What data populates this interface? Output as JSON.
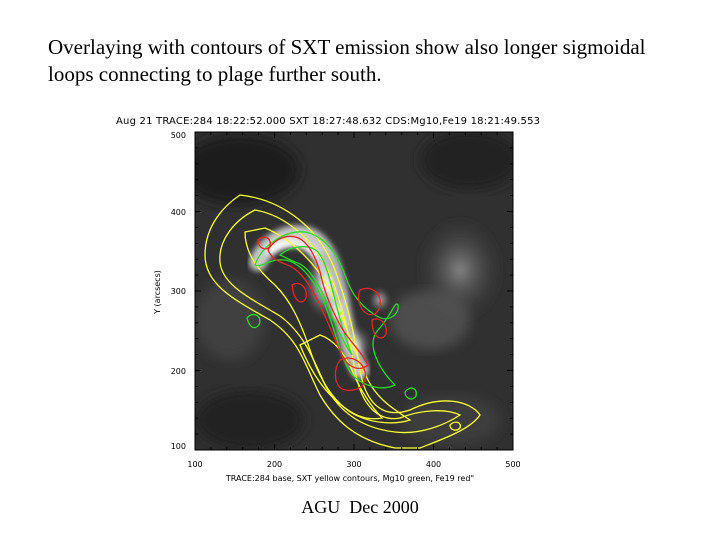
{
  "slide": {
    "title": "Overlaying with contours of SXT emission show also longer sigmoidal loops connecting to plage further south.",
    "footer": "AGU  Dec 2000"
  },
  "figure": {
    "header": "Aug 21 TRACE:284 18:22:52.000 SXT 18:27:48.632 CDS:Mg10,Fe19 18:21:49.553",
    "y_axis_title": "Y (arcsecs)",
    "x_axis_caption": "TRACE:284 base, SXT yellow contours, Mg10 green, Fe19 red\"",
    "x_ticks": [
      "100",
      "200",
      "300",
      "400",
      "500"
    ],
    "y_ticks": [
      "500",
      "400",
      "300",
      "200",
      "100"
    ],
    "contour_colors": {
      "sxt": "#ffff33",
      "mg10": "#22dd22",
      "fe19": "#ee2222"
    }
  }
}
